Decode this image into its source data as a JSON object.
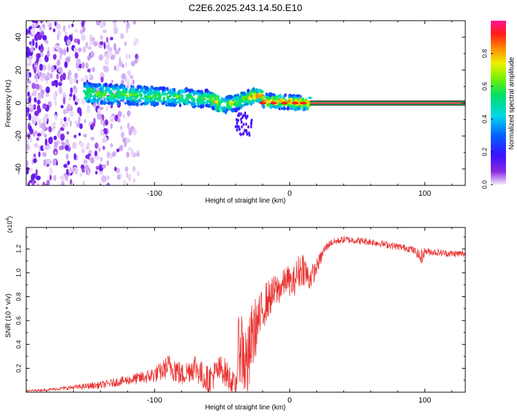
{
  "title": "C2E6.2025.243.14.50.E10",
  "chart_data": [
    {
      "type": "heatmap",
      "name": "spectrogram",
      "xlabel": "Height of straight line (km)",
      "ylabel": "Frequency (Hz)",
      "xlim": [
        -195,
        130
      ],
      "ylim": [
        -50,
        50
      ],
      "xticks": [
        -100,
        0,
        100
      ],
      "xtick_labels": [
        "-100",
        "0",
        "100"
      ],
      "yticks": [
        -40,
        -20,
        0,
        20,
        40
      ],
      "ytick_labels": [
        "-40",
        "-20",
        "0",
        "20",
        "40"
      ],
      "colorbar": {
        "label": "Normalized spectral amplitude",
        "range": [
          0,
          1
        ],
        "ticks": [
          0,
          0.2,
          0.4,
          0.6,
          0.8
        ],
        "tick_labels": [
          "0.0",
          "0.2",
          "0.4",
          "0.6",
          "0.8"
        ]
      },
      "features": {
        "noise_region_x": [
          -195,
          -112
        ],
        "signal_band_x": [
          -152,
          15
        ],
        "signal_center_freq_start": 6,
        "signal_center_freq_end": 0,
        "line_x": [
          15,
          130
        ],
        "line_freq": 0,
        "line_amplitude": 0.95
      }
    },
    {
      "type": "line",
      "name": "snr",
      "xlabel": "Height of straight line (km)",
      "ylabel": "SNR (10 * v/v)",
      "scale_label": "(x10",
      "scale_exponent": "4",
      "scale_close": ")",
      "xlim": [
        -195,
        130
      ],
      "ylim": [
        0,
        1.38
      ],
      "xticks": [
        -100,
        0,
        100
      ],
      "xtick_labels": [
        "-100",
        "0",
        "100"
      ],
      "yticks": [
        0.2,
        0.4,
        0.6,
        0.8,
        1.0,
        1.2
      ],
      "ytick_labels": [
        "0.2",
        "0.4",
        "0.6",
        "0.8",
        "1.0",
        "1.2"
      ],
      "color": "#e8312f",
      "series": [
        {
          "name": "SNR",
          "x": [
            -195,
            -180,
            -160,
            -140,
            -120,
            -105,
            -95,
            -90,
            -85,
            -80,
            -75,
            -70,
            -65,
            -60,
            -55,
            -50,
            -45,
            -40,
            -37,
            -34,
            -31,
            -28,
            -25,
            -22,
            -18,
            -14,
            -10,
            -6,
            -2,
            2,
            6,
            10,
            14,
            18,
            22,
            26,
            30,
            40,
            50,
            60,
            70,
            80,
            90,
            95,
            97,
            100,
            110,
            120,
            130
          ],
          "y": [
            0.01,
            0.02,
            0.04,
            0.06,
            0.1,
            0.13,
            0.17,
            0.22,
            0.2,
            0.14,
            0.18,
            0.22,
            0.14,
            0.1,
            0.16,
            0.2,
            0.12,
            0.05,
            0.45,
            0.3,
            0.2,
            0.45,
            0.55,
            0.62,
            0.75,
            0.8,
            0.85,
            0.88,
            0.95,
            0.9,
            1.0,
            1.05,
            0.95,
            1.0,
            1.1,
            1.2,
            1.25,
            1.28,
            1.27,
            1.26,
            1.24,
            1.22,
            1.2,
            1.16,
            1.12,
            1.18,
            1.17,
            1.16,
            1.16
          ],
          "noise": [
            0.008,
            0.01,
            0.02,
            0.03,
            0.04,
            0.06,
            0.08,
            0.1,
            0.12,
            0.1,
            0.1,
            0.12,
            0.12,
            0.12,
            0.12,
            0.12,
            0.12,
            0.08,
            0.35,
            0.35,
            0.35,
            0.3,
            0.25,
            0.2,
            0.18,
            0.15,
            0.15,
            0.12,
            0.12,
            0.12,
            0.15,
            0.15,
            0.12,
            0.08,
            0.06,
            0.04,
            0.03,
            0.03,
            0.03,
            0.03,
            0.03,
            0.03,
            0.03,
            0.04,
            0.08,
            0.03,
            0.03,
            0.03,
            0.03
          ]
        }
      ]
    }
  ]
}
